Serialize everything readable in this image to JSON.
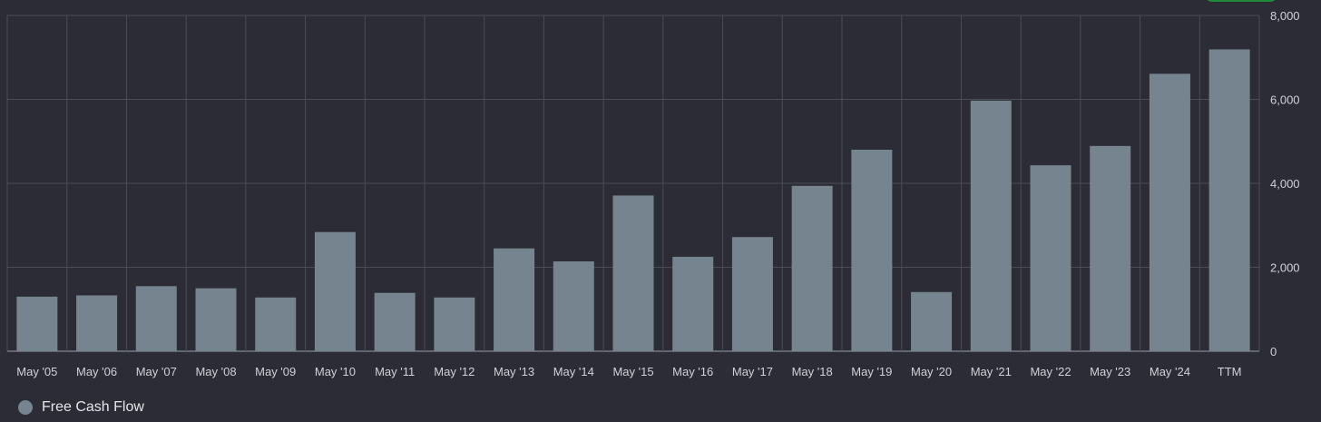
{
  "chart_data": {
    "type": "bar",
    "categories": [
      "May '05",
      "May '06",
      "May '07",
      "May '08",
      "May '09",
      "May '10",
      "May '11",
      "May '12",
      "May '13",
      "May '14",
      "May '15",
      "May '16",
      "May '17",
      "May '18",
      "May '19",
      "May '20",
      "May '21",
      "May '22",
      "May '23",
      "May '24",
      "TTM"
    ],
    "series": [
      {
        "name": "Free Cash Flow",
        "values": [
          1300,
          1330,
          1550,
          1500,
          1280,
          2840,
          1390,
          1280,
          2450,
          2140,
          3710,
          2250,
          2720,
          3940,
          4800,
          1410,
          5970,
          4430,
          4890,
          6610,
          7190
        ],
        "color": "#76848f"
      }
    ],
    "yticks": [
      0,
      2000,
      4000,
      6000,
      8000
    ],
    "ytick_labels": [
      "0",
      "2,000",
      "4,000",
      "6,000",
      "8,000"
    ],
    "ylim": [
      0,
      8000
    ],
    "grid": true,
    "legend_position": "bottom-left"
  },
  "colors": {
    "background": "#2b2c35",
    "grid": "#4a4c57",
    "bar": "#76848f",
    "accent_pill": "#1f8a3a"
  }
}
